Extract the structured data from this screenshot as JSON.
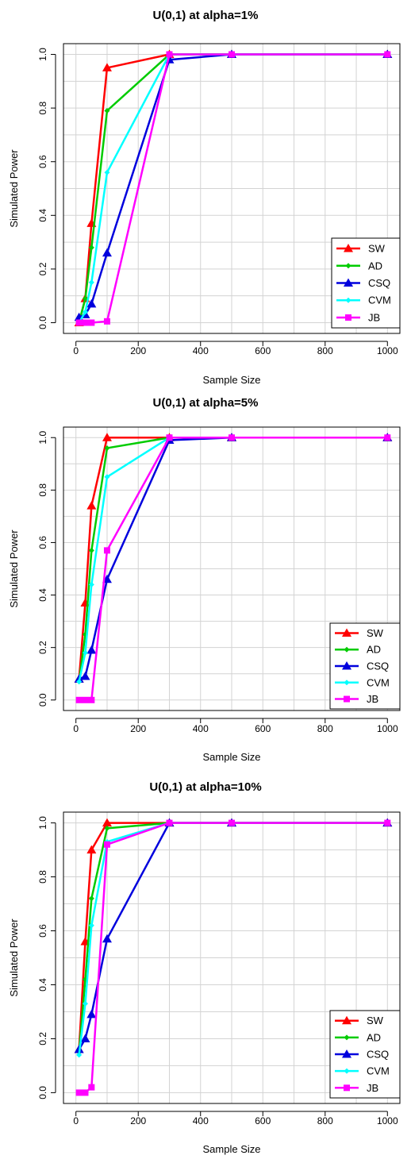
{
  "colors": {
    "SW": "#ff0000",
    "AD": "#00cc00",
    "CSQ": "#0000dd",
    "CVM": "#00ffff",
    "JB": "#ff00ff",
    "grid": "#d3d3d3"
  },
  "chart_data": [
    {
      "type": "line",
      "title": "U(0,1) at alpha=1%",
      "xlabel": "Sample Size",
      "ylabel": "Simulated Power",
      "xlim": [
        0,
        1000
      ],
      "ylim": [
        0,
        1
      ],
      "xticks": [
        "0",
        "200",
        "400",
        "600",
        "800",
        "1000"
      ],
      "yticks": [
        "0.0",
        "0.2",
        "0.4",
        "0.6",
        "0.8",
        "1.0"
      ],
      "grid": true,
      "legend_position": "bottom-right",
      "x": [
        10,
        30,
        50,
        100,
        300,
        500,
        1000
      ],
      "series": [
        {
          "name": "SW",
          "marker": "triangle",
          "values": [
            0.0,
            0.09,
            0.37,
            0.95,
            1.0,
            1.0,
            1.0
          ]
        },
        {
          "name": "AD",
          "marker": "diamond",
          "values": [
            0.0,
            0.09,
            0.28,
            0.79,
            1.0,
            1.0,
            1.0
          ]
        },
        {
          "name": "CSQ",
          "marker": "triangle",
          "values": [
            0.02,
            0.03,
            0.07,
            0.26,
            0.98,
            1.0,
            1.0
          ]
        },
        {
          "name": "CVM",
          "marker": "diamond",
          "values": [
            0.0,
            0.04,
            0.15,
            0.56,
            1.0,
            1.0,
            1.0
          ]
        },
        {
          "name": "JB",
          "marker": "square",
          "values": [
            0.0,
            0.0,
            0.0,
            0.005,
            1.0,
            1.0,
            1.0
          ]
        }
      ]
    },
    {
      "type": "line",
      "title": "U(0,1) at alpha=5%",
      "xlabel": "Sample Size",
      "ylabel": "Simulated Power",
      "xlim": [
        0,
        1000
      ],
      "ylim": [
        0,
        1
      ],
      "xticks": [
        "0",
        "200",
        "400",
        "600",
        "800",
        "1000"
      ],
      "yticks": [
        "0.0",
        "0.2",
        "0.4",
        "0.6",
        "0.8",
        "1.0"
      ],
      "grid": true,
      "legend_position": "bottom-right",
      "x": [
        10,
        30,
        50,
        100,
        300,
        500,
        1000
      ],
      "series": [
        {
          "name": "SW",
          "marker": "triangle",
          "values": [
            0.08,
            0.37,
            0.74,
            1.0,
            1.0,
            1.0,
            1.0
          ]
        },
        {
          "name": "AD",
          "marker": "diamond",
          "values": [
            0.07,
            0.25,
            0.57,
            0.96,
            1.0,
            1.0,
            1.0
          ]
        },
        {
          "name": "CSQ",
          "marker": "triangle",
          "values": [
            0.08,
            0.09,
            0.19,
            0.46,
            0.99,
            1.0,
            1.0
          ]
        },
        {
          "name": "CVM",
          "marker": "diamond",
          "values": [
            0.07,
            0.18,
            0.44,
            0.85,
            1.0,
            1.0,
            1.0
          ]
        },
        {
          "name": "JB",
          "marker": "square",
          "values": [
            0.0,
            0.0,
            0.0,
            0.57,
            1.0,
            1.0,
            1.0
          ]
        }
      ]
    },
    {
      "type": "line",
      "title": "U(0,1) at alpha=10%",
      "xlabel": "Sample Size",
      "ylabel": "Simulated Power",
      "xlim": [
        0,
        1000
      ],
      "ylim": [
        0,
        1
      ],
      "xticks": [
        "0",
        "200",
        "400",
        "600",
        "800",
        "1000"
      ],
      "yticks": [
        "0.0",
        "0.2",
        "0.4",
        "0.6",
        "0.8",
        "1.0"
      ],
      "grid": true,
      "legend_position": "bottom-right",
      "x": [
        10,
        30,
        50,
        100,
        300,
        500,
        1000
      ],
      "series": [
        {
          "name": "SW",
          "marker": "triangle",
          "values": [
            0.16,
            0.56,
            0.9,
            1.0,
            1.0,
            1.0,
            1.0
          ]
        },
        {
          "name": "AD",
          "marker": "diamond",
          "values": [
            0.15,
            0.42,
            0.72,
            0.98,
            1.0,
            1.0,
            1.0
          ]
        },
        {
          "name": "CSQ",
          "marker": "triangle",
          "values": [
            0.16,
            0.2,
            0.29,
            0.57,
            1.0,
            1.0,
            1.0
          ]
        },
        {
          "name": "CVM",
          "marker": "diamond",
          "values": [
            0.14,
            0.33,
            0.62,
            0.93,
            1.0,
            1.0,
            1.0
          ]
        },
        {
          "name": "JB",
          "marker": "square",
          "values": [
            0.0,
            0.0,
            0.02,
            0.92,
            1.0,
            1.0,
            1.0
          ]
        }
      ]
    }
  ]
}
